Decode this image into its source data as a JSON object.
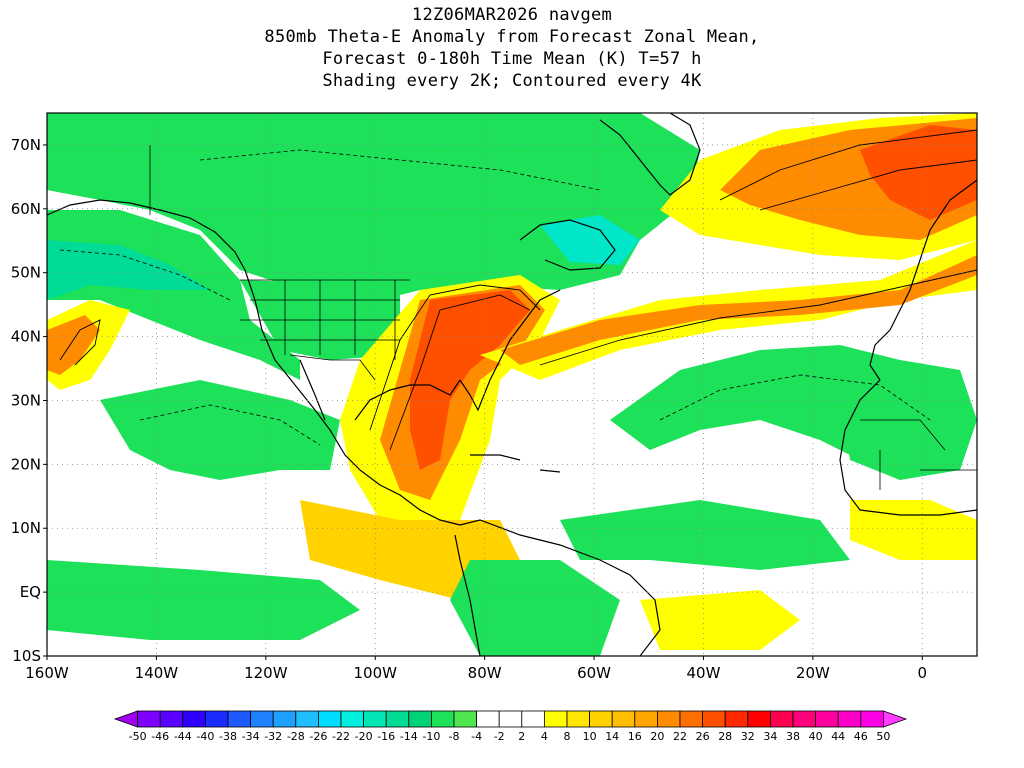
{
  "header": {
    "line1": "12Z06MAR2026 navgem",
    "line2": "850mb Theta-E Anomaly from Forecast Zonal Mean,",
    "line3": "Forecast 0-180h Time Mean (K) T=57 h",
    "line4": "Shading every 2K; Contoured every 4K"
  },
  "axes": {
    "lat_labels": [
      "70N",
      "60N",
      "50N",
      "40N",
      "30N",
      "20N",
      "10N",
      "EQ",
      "10S"
    ],
    "lon_labels": [
      "160W",
      "140W",
      "120W",
      "100W",
      "80W",
      "60W",
      "40W",
      "20W",
      "0"
    ],
    "lat_range": [
      -10,
      75
    ],
    "lon_range": [
      -160,
      10
    ]
  },
  "colorbar": {
    "labels": [
      "-50",
      "-46",
      "-44",
      "-40",
      "-38",
      "-34",
      "-32",
      "-28",
      "-26",
      "-22",
      "-20",
      "-16",
      "-14",
      "-10",
      "-8",
      "-4",
      "-2",
      "2",
      "4",
      "8",
      "10",
      "14",
      "16",
      "20",
      "22",
      "26",
      "28",
      "32",
      "34",
      "38",
      "40",
      "44",
      "46",
      "50"
    ],
    "colors": [
      "#a000f0",
      "#7e00ff",
      "#5a00ff",
      "#3000ff",
      "#1a2cff",
      "#1e5aff",
      "#1e82ff",
      "#1ea0ff",
      "#1ebeff",
      "#00dcff",
      "#00f0e0",
      "#00e6b4",
      "#00dc96",
      "#00d278",
      "#1ee15a",
      "#50e650",
      "#ffffff",
      "#ffffff",
      "#ffffff",
      "#ffff00",
      "#ffe600",
      "#ffd200",
      "#ffbe00",
      "#ffa500",
      "#ff8c00",
      "#ff6e00",
      "#ff5000",
      "#ff2800",
      "#ff0000",
      "#ff0050",
      "#ff007a",
      "#ff00a0",
      "#ff00c8",
      "#ff00e6",
      "#ff3cff"
    ]
  },
  "map": {
    "fills": {
      "green": "#1ee15a",
      "light_green": "#50e650",
      "teal": "#00dc96",
      "cyan": "#00e6c8",
      "yellow": "#ffff00",
      "gold": "#ffd200",
      "orange": "#ff8c00",
      "red_orange": "#ff5000",
      "red": "#ff2800",
      "white": "#ffffff"
    },
    "grid_lats": [
      70,
      60,
      50,
      40,
      30,
      20,
      10,
      0
    ],
    "grid_lons": [
      -140,
      -120,
      -100,
      -80,
      -60,
      -40,
      -20,
      0
    ]
  }
}
